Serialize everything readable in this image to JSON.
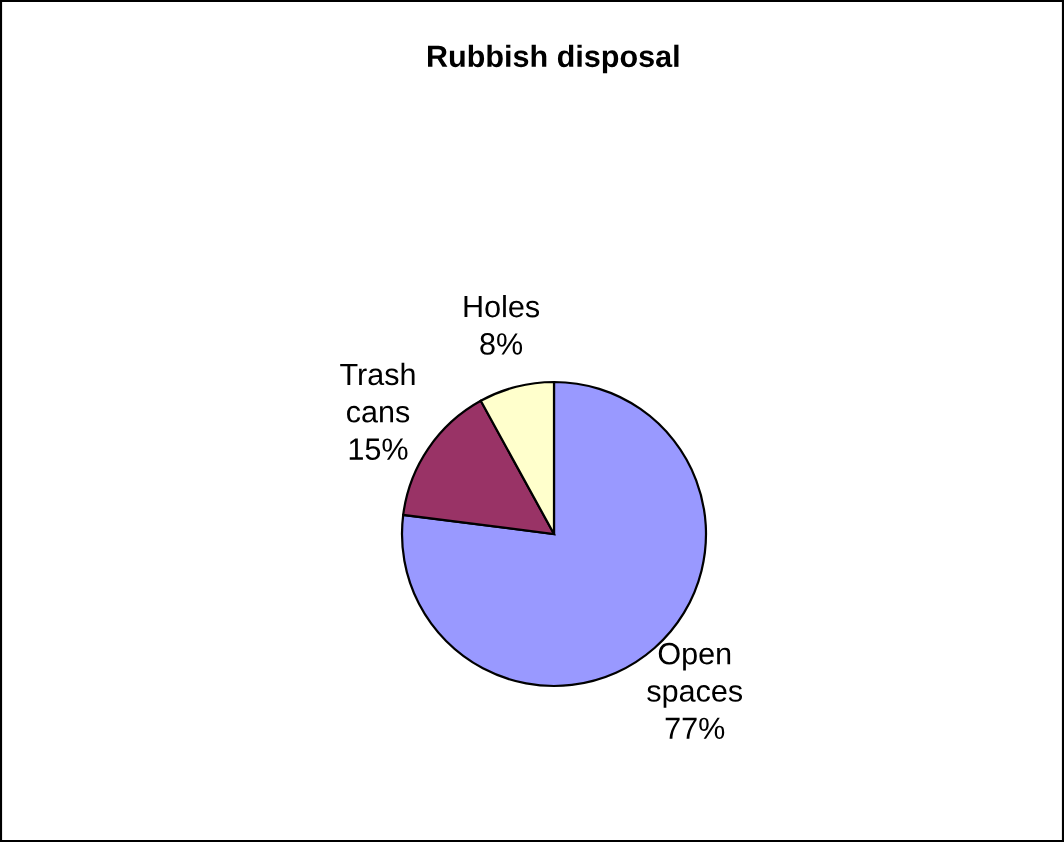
{
  "chart_data": {
    "type": "pie",
    "title": "Rubbish disposal",
    "categories": [
      "Open spaces",
      "Trash cans",
      "Holes"
    ],
    "values": [
      77,
      15,
      8
    ],
    "colors": [
      "#9999ff",
      "#993366",
      "#ffffcc"
    ],
    "value_labels": [
      "77%",
      "15%",
      "8%"
    ],
    "legend": false
  }
}
